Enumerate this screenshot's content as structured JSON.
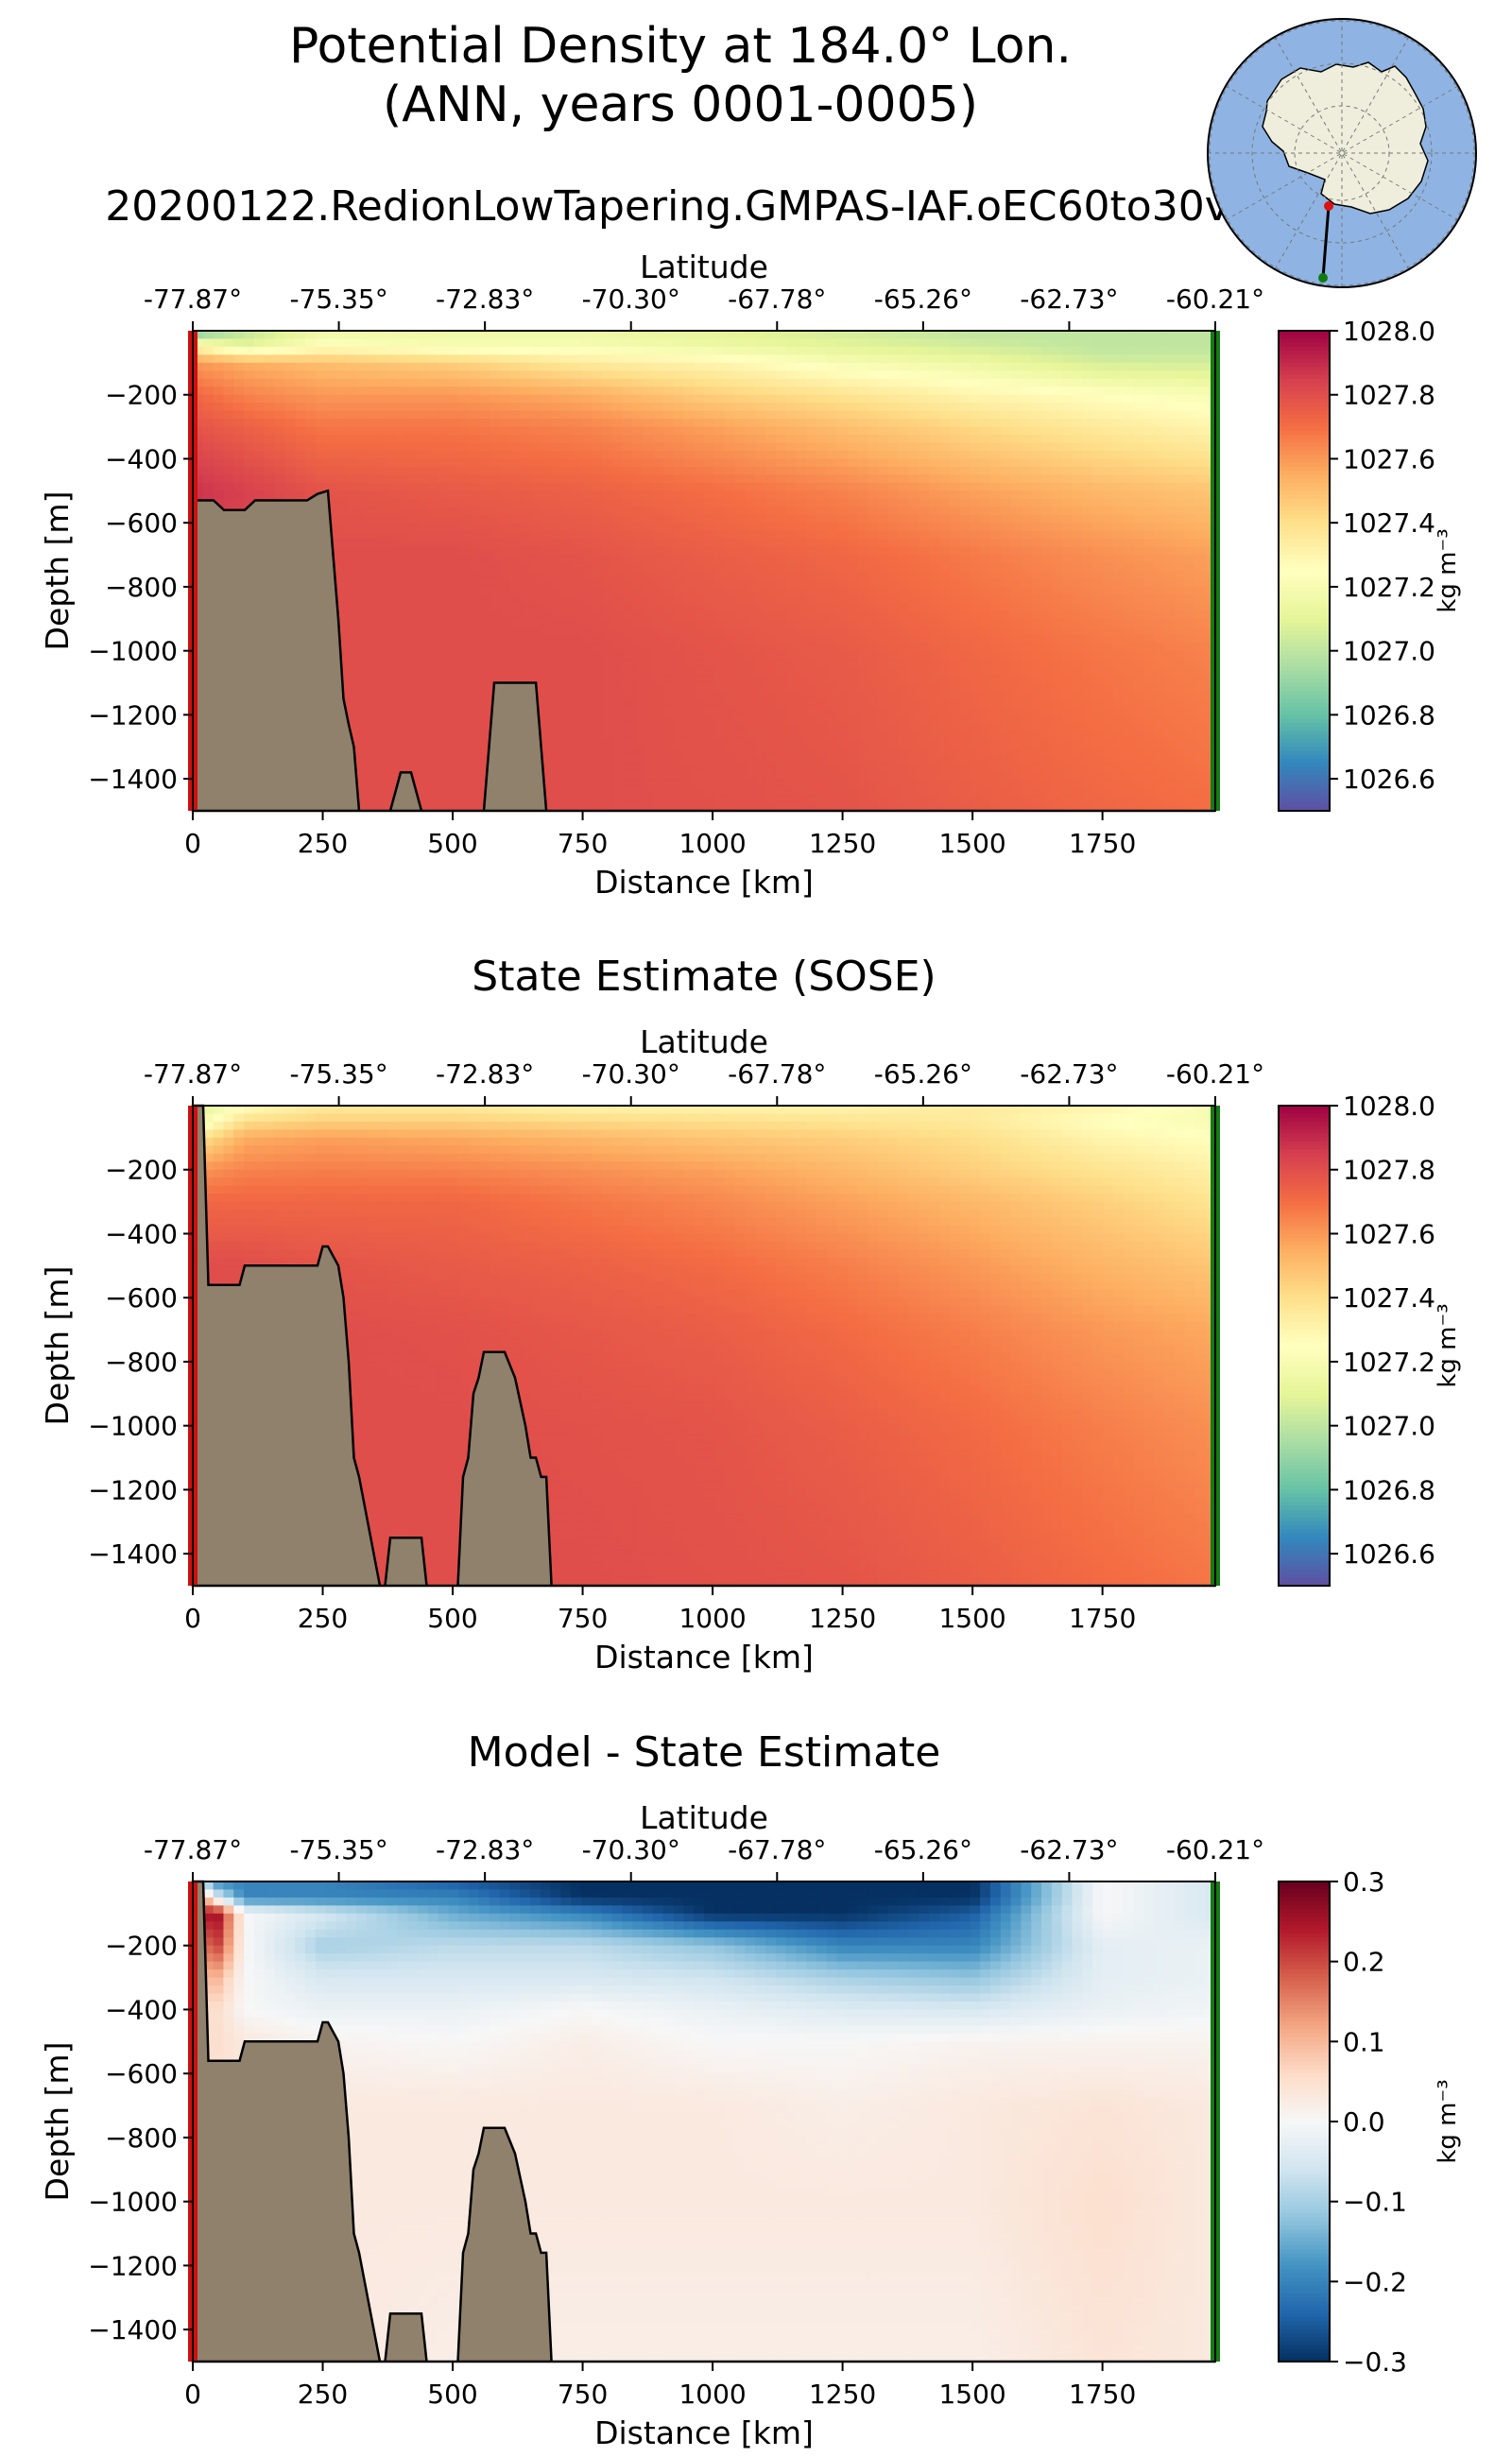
{
  "figure": {
    "title_line1": "Potential Density at 184.0° Lon.",
    "title_line2": "(ANN, years 0001-0005)",
    "subtitle": "20200122.RedionLowTapering.GMPAS-IAF.oEC60to30v3"
  },
  "inset_map": {
    "projection": "south-polar-stereographic",
    "ocean_color": "#8fb4e3",
    "land_color": "#efeedc",
    "transect_start_marker_color": "#dd1111",
    "transect_end_marker_color": "#117a11"
  },
  "colors": {
    "bathymetry_fill": "#8f816b",
    "transect_start_edge": "#cc1111",
    "transect_end_edge": "#157a15"
  },
  "chart_data": [
    {
      "type": "heatmap",
      "title": "",
      "xlabel": "Distance [km]",
      "ylabel": "Depth [m]",
      "top_axis_label": "Latitude",
      "top_tick_labels": [
        "-77.87°",
        "-75.35°",
        "-72.83°",
        "-70.30°",
        "-67.78°",
        "-65.26°",
        "-62.73°",
        "-60.21°"
      ],
      "top_tick_distances_km": [
        0,
        281,
        562,
        843,
        1124,
        1405,
        1686,
        1967
      ],
      "x_ticks": [
        0,
        250,
        500,
        750,
        1000,
        1250,
        1500,
        1750
      ],
      "y_ticks": [
        -200,
        -400,
        -600,
        -800,
        -1000,
        -1200,
        -1400
      ],
      "xlim": [
        0,
        1967
      ],
      "ylim": [
        -1500,
        0
      ],
      "colormap": "Spectral_r",
      "colorbar_label": "kg m⁻³",
      "colorbar_range": [
        1026.5,
        1028.0
      ],
      "colorbar_ticks": [
        "1028.0",
        "1027.8",
        "1027.6",
        "1027.4",
        "1027.2",
        "1027.0",
        "1026.8",
        "1026.6"
      ],
      "field": {
        "distance_km": [
          0,
          100,
          250,
          500,
          750,
          1000,
          1250,
          1500,
          1750,
          1967
        ],
        "depth_m": [
          0,
          -50,
          -100,
          -200,
          -300,
          -500,
          -700,
          -1000,
          -1500
        ],
        "values": [
          [
            1026.8,
            1027.0,
            1027.15,
            1027.15,
            1027.15,
            1027.1,
            1027.05,
            1027.0,
            1027.0,
            1027.0
          ],
          [
            1027.3,
            1027.1,
            1027.25,
            1027.2,
            1027.2,
            1027.15,
            1027.1,
            1027.05,
            1027.0,
            1027.0
          ],
          [
            1027.6,
            1027.55,
            1027.5,
            1027.45,
            1027.35,
            1027.3,
            1027.2,
            1027.15,
            1027.05,
            1027.05
          ],
          [
            1027.72,
            1027.65,
            1027.6,
            1027.6,
            1027.55,
            1027.45,
            1027.38,
            1027.3,
            1027.25,
            1027.2
          ],
          [
            1027.78,
            1027.74,
            1027.68,
            1027.68,
            1027.65,
            1027.58,
            1027.5,
            1027.42,
            1027.35,
            1027.3
          ],
          [
            1027.88,
            1027.84,
            1027.78,
            1027.76,
            1027.74,
            1027.7,
            1027.65,
            1027.58,
            1027.52,
            1027.48
          ],
          [
            1027.82,
            1027.82,
            1027.8,
            1027.8,
            1027.78,
            1027.75,
            1027.72,
            1027.67,
            1027.62,
            1027.58
          ],
          [
            1027.8,
            1027.8,
            1027.8,
            1027.8,
            1027.8,
            1027.78,
            1027.76,
            1027.72,
            1027.68,
            1027.65
          ],
          [
            1027.8,
            1027.8,
            1027.8,
            1027.8,
            1027.8,
            1027.79,
            1027.78,
            1027.75,
            1027.72,
            1027.7
          ]
        ]
      },
      "bathymetry": {
        "distance_km": [
          0,
          20,
          40,
          60,
          80,
          100,
          120,
          140,
          160,
          180,
          200,
          220,
          240,
          260,
          280,
          290,
          300,
          310,
          320,
          360,
          380,
          400,
          420,
          440,
          480,
          520,
          560,
          580,
          600,
          620,
          640,
          660,
          680,
          700,
          720,
          760,
          800,
          840,
          1967
        ],
        "depth_m": [
          -530,
          -530,
          -530,
          -560,
          -560,
          -560,
          -530,
          -530,
          -530,
          -530,
          -530,
          -530,
          -510,
          -500,
          -900,
          -1150,
          -1230,
          -1300,
          -1500,
          -1500,
          -1500,
          -1380,
          -1380,
          -1500,
          -1500,
          -1500,
          -1500,
          -1100,
          -1100,
          -1100,
          -1100,
          -1100,
          -1500,
          -1500,
          -1500,
          -1500,
          -1500,
          -1500,
          -1500
        ]
      }
    },
    {
      "type": "heatmap",
      "title": "State Estimate (SOSE)",
      "xlabel": "Distance [km]",
      "ylabel": "Depth [m]",
      "top_axis_label": "Latitude",
      "top_tick_labels": [
        "-77.87°",
        "-75.35°",
        "-72.83°",
        "-70.30°",
        "-67.78°",
        "-65.26°",
        "-62.73°",
        "-60.21°"
      ],
      "top_tick_distances_km": [
        0,
        281,
        562,
        843,
        1124,
        1405,
        1686,
        1967
      ],
      "x_ticks": [
        0,
        250,
        500,
        750,
        1000,
        1250,
        1500,
        1750
      ],
      "y_ticks": [
        -200,
        -400,
        -600,
        -800,
        -1000,
        -1200,
        -1400
      ],
      "xlim": [
        0,
        1967
      ],
      "ylim": [
        -1500,
        0
      ],
      "colormap": "Spectral_r",
      "colorbar_label": "kg m⁻³",
      "colorbar_range": [
        1026.5,
        1028.0
      ],
      "colorbar_ticks": [
        "1028.0",
        "1027.8",
        "1027.6",
        "1027.4",
        "1027.2",
        "1027.0",
        "1026.8",
        "1026.6"
      ],
      "field": {
        "distance_km": [
          0,
          100,
          250,
          500,
          750,
          1000,
          1250,
          1500,
          1750,
          1967
        ],
        "depth_m": [
          0,
          -50,
          -100,
          -200,
          -300,
          -500,
          -700,
          -1000,
          -1500
        ],
        "values": [
          [
            1027.05,
            1027.25,
            1027.35,
            1027.35,
            1027.3,
            1027.3,
            1027.3,
            1027.35,
            1027.3,
            1027.2
          ],
          [
            1027.15,
            1027.4,
            1027.45,
            1027.45,
            1027.42,
            1027.4,
            1027.38,
            1027.35,
            1027.25,
            1027.2
          ],
          [
            1027.35,
            1027.55,
            1027.58,
            1027.56,
            1027.52,
            1027.48,
            1027.45,
            1027.4,
            1027.3,
            1027.25
          ],
          [
            1027.6,
            1027.65,
            1027.66,
            1027.65,
            1027.62,
            1027.58,
            1027.52,
            1027.45,
            1027.38,
            1027.32
          ],
          [
            1027.72,
            1027.72,
            1027.72,
            1027.72,
            1027.68,
            1027.64,
            1027.58,
            1027.52,
            1027.45,
            1027.38
          ],
          [
            1027.8,
            1027.8,
            1027.78,
            1027.76,
            1027.74,
            1027.71,
            1027.66,
            1027.6,
            1027.53,
            1027.48
          ],
          [
            1027.8,
            1027.8,
            1027.8,
            1027.79,
            1027.77,
            1027.75,
            1027.71,
            1027.66,
            1027.6,
            1027.56
          ],
          [
            1027.8,
            1027.8,
            1027.8,
            1027.8,
            1027.79,
            1027.78,
            1027.75,
            1027.71,
            1027.66,
            1027.62
          ],
          [
            1027.8,
            1027.8,
            1027.8,
            1027.8,
            1027.8,
            1027.79,
            1027.78,
            1027.75,
            1027.71,
            1027.68
          ]
        ]
      },
      "bathymetry": {
        "distance_km": [
          0,
          20,
          30,
          40,
          60,
          80,
          90,
          100,
          140,
          180,
          220,
          240,
          250,
          260,
          280,
          290,
          300,
          310,
          320,
          360,
          370,
          380,
          420,
          440,
          450,
          500,
          510,
          520,
          530,
          540,
          550,
          560,
          570,
          580,
          600,
          620,
          640,
          650,
          660,
          670,
          680,
          690,
          700,
          1967
        ],
        "depth_m": [
          0,
          0,
          -560,
          -560,
          -560,
          -560,
          -560,
          -500,
          -500,
          -500,
          -500,
          -500,
          -440,
          -440,
          -500,
          -600,
          -800,
          -1100,
          -1160,
          -1500,
          -1500,
          -1350,
          -1350,
          -1350,
          -1500,
          -1500,
          -1500,
          -1160,
          -1100,
          -900,
          -850,
          -770,
          -770,
          -770,
          -770,
          -850,
          -1000,
          -1100,
          -1100,
          -1160,
          -1160,
          -1500,
          -1500,
          -1500
        ]
      }
    },
    {
      "type": "heatmap",
      "title": "Model - State Estimate",
      "xlabel": "Distance [km]",
      "ylabel": "Depth [m]",
      "top_axis_label": "Latitude",
      "top_tick_labels": [
        "-77.87°",
        "-75.35°",
        "-72.83°",
        "-70.30°",
        "-67.78°",
        "-65.26°",
        "-62.73°",
        "-60.21°"
      ],
      "top_tick_distances_km": [
        0,
        281,
        562,
        843,
        1124,
        1405,
        1686,
        1967
      ],
      "x_ticks": [
        0,
        250,
        500,
        750,
        1000,
        1250,
        1500,
        1750
      ],
      "y_ticks": [
        -200,
        -400,
        -600,
        -800,
        -1000,
        -1200,
        -1400
      ],
      "xlim": [
        0,
        1967
      ],
      "ylim": [
        -1500,
        0
      ],
      "colormap": "RdBu_r",
      "colorbar_label": "kg m⁻³",
      "colorbar_range": [
        -0.3,
        0.3
      ],
      "colorbar_ticks": [
        "0.3",
        "0.2",
        "0.1",
        "0.0",
        "−0.1",
        "−0.2",
        "−0.3"
      ],
      "field": {
        "distance_km": [
          0,
          50,
          100,
          250,
          500,
          750,
          1000,
          1250,
          1500,
          1750,
          1967
        ],
        "depth_m": [
          0,
          -50,
          -100,
          -200,
          -300,
          -400,
          -500,
          -700,
          -1000,
          -1500
        ],
        "values": [
          [
            -0.05,
            -0.2,
            -0.2,
            -0.2,
            -0.25,
            -0.3,
            -0.3,
            -0.3,
            -0.3,
            0.0,
            -0.05
          ],
          [
            0.2,
            -0.05,
            -0.2,
            -0.2,
            -0.2,
            -0.3,
            -0.3,
            -0.3,
            -0.3,
            0.0,
            -0.05
          ],
          [
            0.25,
            0.25,
            0.0,
            -0.05,
            -0.15,
            -0.2,
            -0.3,
            -0.3,
            -0.25,
            0.0,
            -0.05
          ],
          [
            0.15,
            0.2,
            0.0,
            -0.1,
            -0.08,
            -0.08,
            -0.12,
            -0.2,
            -0.2,
            -0.03,
            -0.02
          ],
          [
            0.1,
            0.1,
            0.0,
            -0.05,
            -0.05,
            -0.05,
            -0.06,
            -0.1,
            -0.12,
            -0.03,
            -0.02
          ],
          [
            0.05,
            0.05,
            0.0,
            -0.02,
            -0.02,
            0.0,
            -0.02,
            -0.04,
            -0.05,
            -0.02,
            -0.01
          ],
          [
            0.05,
            0.05,
            0.03,
            0.01,
            0.0,
            0.02,
            0.0,
            0.0,
            0.01,
            0.01,
            0.01
          ],
          [
            0.05,
            0.04,
            0.03,
            0.03,
            0.03,
            0.03,
            0.03,
            0.02,
            0.03,
            0.04,
            0.03
          ],
          [
            0.04,
            0.04,
            0.03,
            0.03,
            0.03,
            0.03,
            0.03,
            0.03,
            0.03,
            0.05,
            0.03
          ],
          [
            0.03,
            0.03,
            0.03,
            0.03,
            0.02,
            0.02,
            0.02,
            0.02,
            0.02,
            0.04,
            0.03
          ]
        ]
      },
      "bathymetry": {
        "distance_km": [
          0,
          20,
          30,
          40,
          60,
          80,
          90,
          100,
          140,
          180,
          220,
          240,
          250,
          260,
          280,
          290,
          300,
          310,
          320,
          360,
          370,
          380,
          420,
          440,
          450,
          500,
          510,
          520,
          530,
          540,
          550,
          560,
          570,
          580,
          600,
          620,
          640,
          650,
          660,
          670,
          680,
          690,
          700,
          1967
        ],
        "depth_m": [
          0,
          0,
          -560,
          -560,
          -560,
          -560,
          -560,
          -500,
          -500,
          -500,
          -500,
          -500,
          -440,
          -440,
          -500,
          -600,
          -800,
          -1100,
          -1160,
          -1500,
          -1500,
          -1350,
          -1350,
          -1350,
          -1500,
          -1500,
          -1500,
          -1160,
          -1100,
          -900,
          -850,
          -770,
          -770,
          -770,
          -770,
          -850,
          -1000,
          -1100,
          -1100,
          -1160,
          -1160,
          -1500,
          -1500,
          -1500
        ]
      }
    }
  ]
}
